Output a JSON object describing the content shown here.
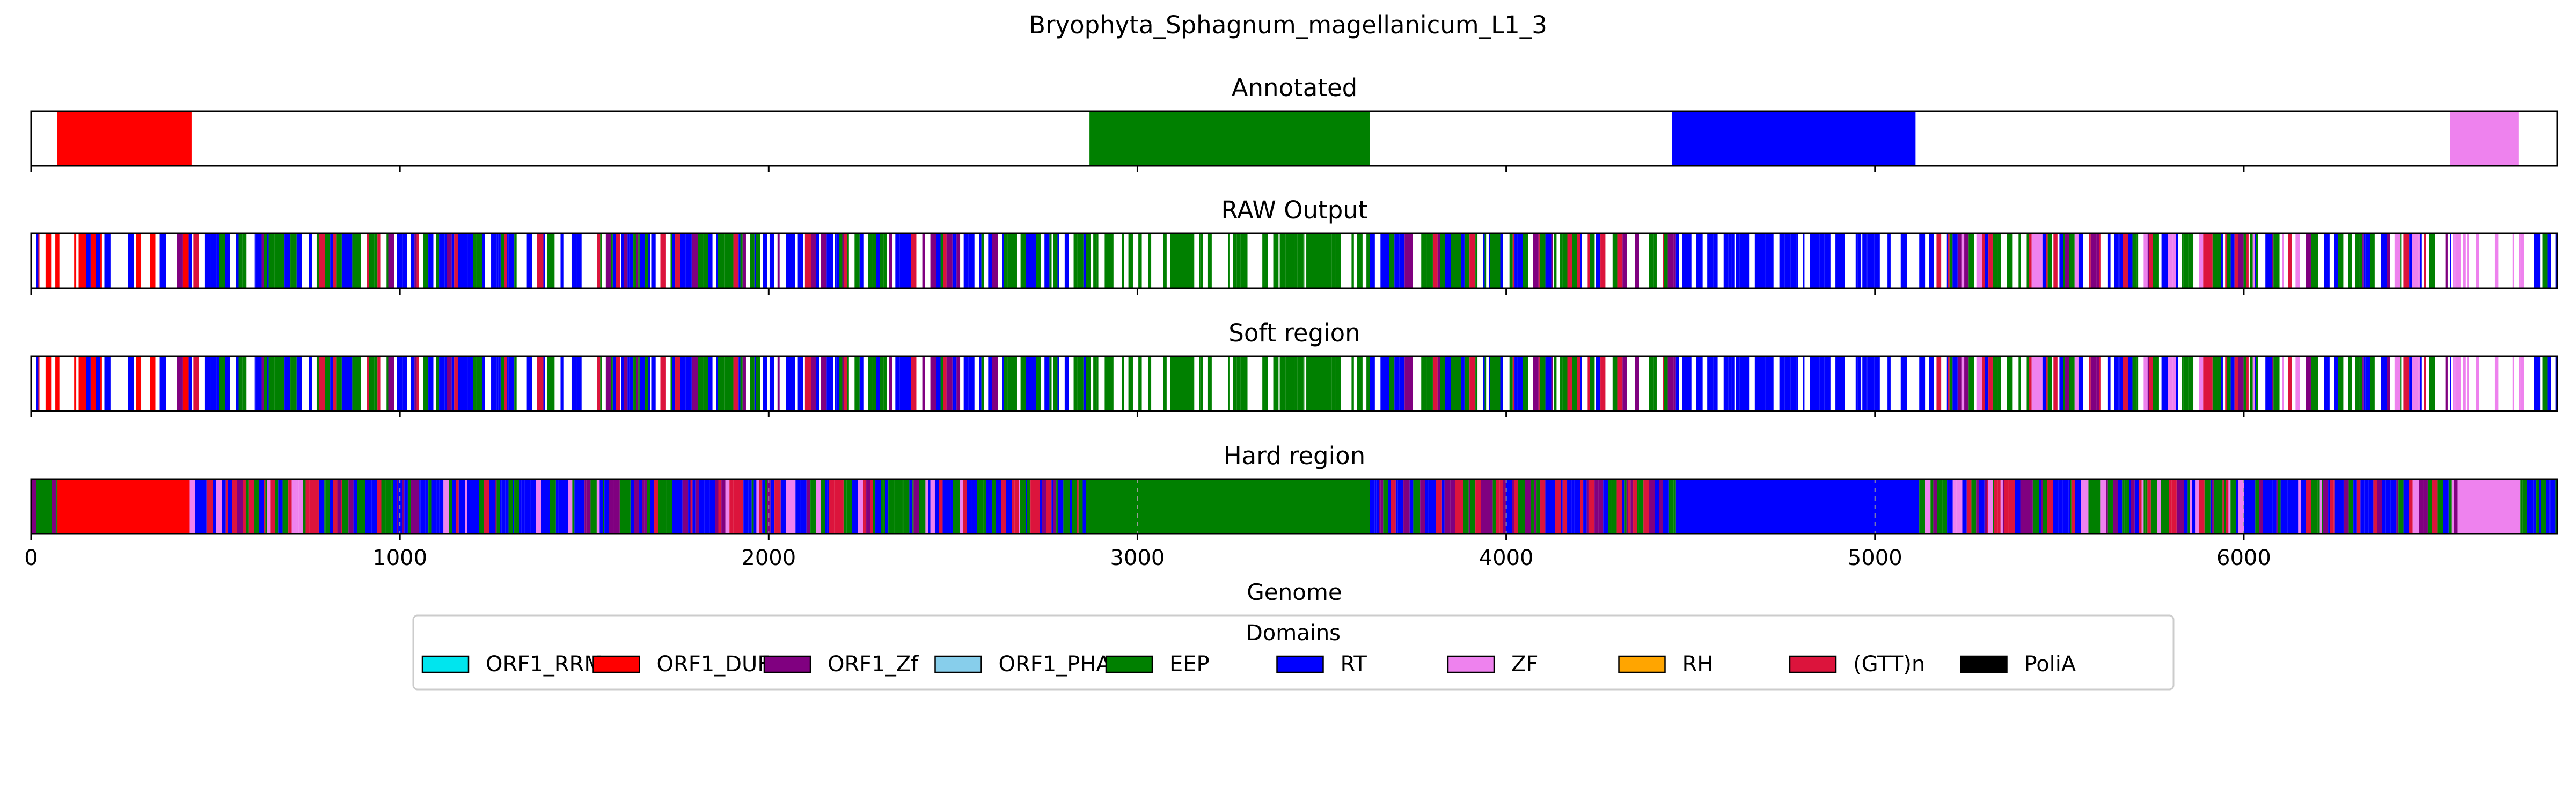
{
  "chart_data": {
    "type": "genome-track",
    "title": "Bryophyta_Sphagnum_magellanicum_L1_3",
    "xlabel": "Genome",
    "xlim": [
      0,
      6850
    ],
    "xticks": [
      0,
      1000,
      2000,
      3000,
      4000,
      5000,
      6000
    ],
    "xtick_labels": [
      "0",
      "1000",
      "2000",
      "3000",
      "4000",
      "5000",
      "6000"
    ],
    "panels": [
      {
        "title": "Annotated",
        "segments": [
          {
            "start": 70,
            "end": 435,
            "domain": "ORF1_DUF"
          },
          {
            "start": 2870,
            "end": 3630,
            "domain": "EEP"
          },
          {
            "start": 4450,
            "end": 5110,
            "domain": "RT"
          },
          {
            "start": 6560,
            "end": 6745,
            "domain": "ZF"
          }
        ]
      },
      {
        "title": "RAW Output",
        "regions": [
          {
            "start": 0,
            "end": 440,
            "pattern": [
              "ORF1_DUF",
              "ORF1_DUF",
              "ORF1_Zf",
              "RT"
            ],
            "density": 0.55
          },
          {
            "start": 440,
            "end": 2860,
            "pattern": [
              "RT",
              "EEP",
              "RT",
              "ORF1_Zf",
              "EEP",
              "RT",
              "(GTT)n",
              "EEP"
            ],
            "density": 0.75
          },
          {
            "start": 2860,
            "end": 3630,
            "pattern": [
              "EEP"
            ],
            "density": 0.6
          },
          {
            "start": 3630,
            "end": 4460,
            "pattern": [
              "RT",
              "EEP",
              "(GTT)n",
              "RT",
              "ORF1_Zf",
              "EEP"
            ],
            "density": 0.75
          },
          {
            "start": 4460,
            "end": 5120,
            "pattern": [
              "RT"
            ],
            "density": 0.7
          },
          {
            "start": 5120,
            "end": 6560,
            "pattern": [
              "RT",
              "EEP",
              "RT",
              "(GTT)n",
              "ORF1_Zf",
              "EEP",
              "ZF"
            ],
            "density": 0.75
          },
          {
            "start": 6560,
            "end": 6760,
            "pattern": [
              "ZF"
            ],
            "density": 0.4
          },
          {
            "start": 6760,
            "end": 6850,
            "pattern": [
              "EEP",
              "RT"
            ],
            "density": 0.8
          }
        ]
      },
      {
        "title": "Soft region",
        "regions": [
          {
            "start": 0,
            "end": 440,
            "pattern": [
              "ORF1_DUF",
              "ORF1_DUF",
              "ORF1_Zf",
              "RT"
            ],
            "density": 0.55
          },
          {
            "start": 440,
            "end": 2860,
            "pattern": [
              "RT",
              "EEP",
              "RT",
              "ORF1_Zf",
              "EEP",
              "RT",
              "(GTT)n",
              "EEP"
            ],
            "density": 0.75
          },
          {
            "start": 2860,
            "end": 3630,
            "pattern": [
              "EEP"
            ],
            "density": 0.6
          },
          {
            "start": 3630,
            "end": 4460,
            "pattern": [
              "RT",
              "EEP",
              "(GTT)n",
              "RT",
              "ORF1_Zf",
              "EEP"
            ],
            "density": 0.75
          },
          {
            "start": 4460,
            "end": 5120,
            "pattern": [
              "RT"
            ],
            "density": 0.7
          },
          {
            "start": 5120,
            "end": 6560,
            "pattern": [
              "RT",
              "EEP",
              "RT",
              "(GTT)n",
              "ORF1_Zf",
              "EEP",
              "ZF"
            ],
            "density": 0.75
          },
          {
            "start": 6560,
            "end": 6760,
            "pattern": [
              "ZF"
            ],
            "density": 0.4
          },
          {
            "start": 6760,
            "end": 6850,
            "pattern": [
              "EEP",
              "RT"
            ],
            "density": 0.8
          }
        ]
      },
      {
        "title": "Hard region",
        "blocks": [
          {
            "start": 70,
            "end": 430,
            "domain": "ORF1_DUF"
          },
          {
            "start": 2860,
            "end": 3630,
            "domain": "EEP"
          },
          {
            "start": 4460,
            "end": 5120,
            "domain": "RT"
          },
          {
            "start": 6580,
            "end": 6750,
            "domain": "ZF"
          }
        ],
        "regions": [
          {
            "start": 0,
            "end": 70,
            "pattern": [
              "RT",
              "EEP",
              "ORF1_Zf"
            ],
            "density": 1
          },
          {
            "start": 430,
            "end": 2860,
            "pattern": [
              "RT",
              "EEP",
              "RT",
              "ORF1_Zf",
              "EEP",
              "(GTT)n",
              "RT",
              "ZF"
            ],
            "density": 1
          },
          {
            "start": 3630,
            "end": 4460,
            "pattern": [
              "RT",
              "EEP",
              "(GTT)n",
              "RT",
              "ORF1_Zf"
            ],
            "density": 1
          },
          {
            "start": 5120,
            "end": 6580,
            "pattern": [
              "RT",
              "EEP",
              "(GTT)n",
              "RT",
              "ZF",
              "ORF1_Zf",
              "EEP"
            ],
            "density": 1
          },
          {
            "start": 6750,
            "end": 6850,
            "pattern": [
              "RT",
              "EEP"
            ],
            "density": 1
          }
        ],
        "dashed_lines": [
          1000,
          2000,
          3000,
          4000,
          5000,
          6000
        ]
      }
    ],
    "legend": {
      "title": "Domains",
      "placement": "bottom-center",
      "entries": [
        {
          "label": "ORF1_RRM",
          "color": "#00e5ee"
        },
        {
          "label": "ORF1_DUF",
          "color": "#ff0000"
        },
        {
          "label": "ORF1_Zf",
          "color": "#800080"
        },
        {
          "label": "ORF1_PHA",
          "color": "#87ceeb"
        },
        {
          "label": "EEP",
          "color": "#008000"
        },
        {
          "label": "RT",
          "color": "#0000ff"
        },
        {
          "label": "ZF",
          "color": "#ee82ee"
        },
        {
          "label": "RH",
          "color": "#ffa500"
        },
        {
          "label": "(GTT)n",
          "color": "#dc143c"
        },
        {
          "label": "PoliA",
          "color": "#000000"
        }
      ]
    }
  }
}
